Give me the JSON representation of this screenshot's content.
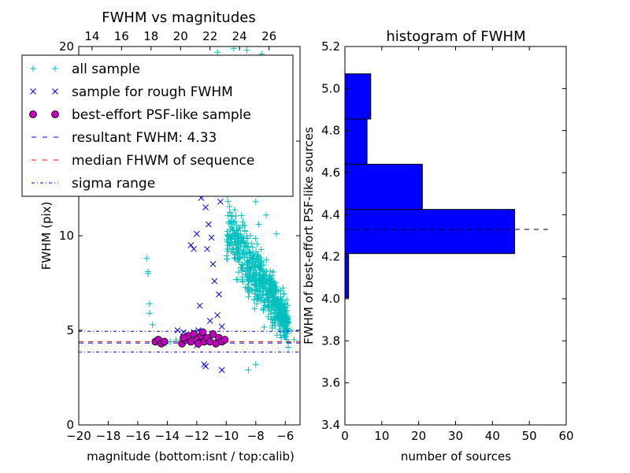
{
  "figure": {
    "background": "#ffffff"
  },
  "chart_data": [
    {
      "type": "scatter",
      "title": "FWHM vs magnitudes",
      "xlabel": "magnitude (bottom:isnt / top:calib)",
      "ylabel": "FWHM (pix)",
      "xlim": [
        -20,
        -5
      ],
      "ylim": [
        0,
        20
      ],
      "xticks": [
        "−20",
        "−18",
        "−16",
        "−14",
        "−12",
        "−10",
        "−8",
        "−6"
      ],
      "xtick_values": [
        -20,
        -18,
        -16,
        -14,
        -12,
        -10,
        -8,
        -6
      ],
      "yticks": [
        "0",
        "5",
        "10",
        "15",
        "20"
      ],
      "ytick_values": [
        0,
        5,
        10,
        15,
        20
      ],
      "top_axis": {
        "ticks": [
          "14",
          "16",
          "18",
          "20",
          "22",
          "24",
          "26"
        ],
        "positions_in_bottom_units": [
          -19.1,
          -17.1,
          -15.1,
          -13.1,
          -11.1,
          -9.1,
          -7.1
        ]
      },
      "grid": false,
      "legend_position": "upper-left",
      "series": [
        {
          "name": "all sample",
          "marker": "plus",
          "color": "#00bfbf",
          "points": [
            [
              -15.4,
              8.8
            ],
            [
              -15.3,
              8.1
            ],
            [
              -15.3,
              8.0
            ],
            [
              -15.2,
              6.4
            ],
            [
              -15.2,
              5.9
            ],
            [
              -15.0,
              5.3
            ],
            [
              -14.8,
              4.5
            ],
            [
              -14.5,
              4.4
            ],
            [
              -14.1,
              4.3
            ],
            [
              -13.8,
              4.4
            ],
            [
              -13.4,
              4.5
            ],
            [
              -13.1,
              4.4
            ],
            [
              -12.5,
              4.6
            ],
            [
              -11.8,
              4.5
            ],
            [
              -11.2,
              4.6
            ],
            [
              -10.5,
              4.5
            ],
            [
              -10.2,
              4.5
            ],
            [
              -10.6,
              19.7
            ],
            [
              -10.5,
              19.3
            ],
            [
              -9.5,
              19.9
            ],
            [
              -8.6,
              19.8
            ],
            [
              -7.6,
              19.6
            ],
            [
              -7.3,
              11.1
            ],
            [
              -6.6,
              10.1
            ],
            [
              -5.6,
              5.0
            ],
            [
              -5.4,
              4.5
            ],
            [
              -8.5,
              2.9
            ],
            [
              -8.0,
              3.2
            ],
            [
              -9.8,
              14.5
            ],
            [
              -9.6,
              16.2
            ],
            [
              -9.4,
              17.4
            ],
            [
              -9.3,
              13.3
            ],
            [
              -9.2,
              15.1
            ],
            [
              -9.0,
              16.8
            ],
            [
              -8.9,
              12.6
            ],
            [
              -8.7,
              14.8
            ],
            [
              -8.5,
              17.9
            ],
            [
              -8.3,
              13.9
            ],
            [
              -8.2,
              15.7
            ],
            [
              -8.0,
              11.8
            ],
            [
              -7.9,
              14.2
            ],
            [
              -7.6,
              12.9
            ],
            [
              -7.8,
              10.6
            ]
          ]
        },
        {
          "name": "sample for rough FWHM",
          "marker": "x",
          "color": "#0000ff",
          "points": [
            [
              -13.3,
              5.0
            ],
            [
              -12.9,
              4.9
            ],
            [
              -12.6,
              4.6
            ],
            [
              -12.2,
              4.9
            ],
            [
              -11.9,
              5.0
            ],
            [
              -11.5,
              4.8
            ],
            [
              -12.4,
              9.5
            ],
            [
              -12.2,
              9.3
            ],
            [
              -12.0,
              10.1
            ],
            [
              -11.7,
              12.0
            ],
            [
              -11.4,
              11.5
            ],
            [
              -11.2,
              10.6
            ],
            [
              -11.3,
              9.3
            ],
            [
              -11.0,
              9.9
            ],
            [
              -11.8,
              6.3
            ],
            [
              -10.8,
              7.6
            ],
            [
              -11.5,
              3.2
            ],
            [
              -11.4,
              3.1
            ],
            [
              -10.3,
              2.9
            ],
            [
              -11.0,
              14.7
            ],
            [
              -10.4,
              11.8
            ],
            [
              -10.9,
              8.5
            ],
            [
              -10.5,
              6.9
            ],
            [
              -10.6,
              5.8
            ],
            [
              -10.3,
              5.2
            ],
            [
              -11.1,
              5.5
            ],
            [
              -12.0,
              4.2
            ],
            [
              -11.0,
              13.2
            ]
          ]
        },
        {
          "name": "best-effort PSF-like sample",
          "marker": "circle",
          "color": "#bf00bf",
          "points": [
            [
              -14.8,
              4.4
            ],
            [
              -14.6,
              4.5
            ],
            [
              -14.4,
              4.3
            ],
            [
              -14.2,
              4.4
            ],
            [
              -13.0,
              4.3
            ],
            [
              -12.8,
              4.5
            ],
            [
              -12.6,
              4.7
            ],
            [
              -12.4,
              4.4
            ],
            [
              -12.2,
              4.8
            ],
            [
              -12.0,
              4.5
            ],
            [
              -11.9,
              4.3
            ],
            [
              -11.7,
              4.7
            ],
            [
              -11.5,
              4.4
            ],
            [
              -11.3,
              4.6
            ],
            [
              -11.1,
              4.4
            ],
            [
              -10.9,
              4.8
            ],
            [
              -10.7,
              4.3
            ],
            [
              -10.5,
              4.6
            ],
            [
              -10.3,
              4.4
            ],
            [
              -10.1,
              4.5
            ],
            [
              -12.9,
              4.6
            ],
            [
              -11.6,
              4.9
            ]
          ]
        }
      ],
      "lines": [
        {
          "name": "resultant FWHM: 4.33",
          "y": 4.33,
          "style": "dashed",
          "color": "#0000ff"
        },
        {
          "name": "median FHWM of sequence",
          "y": 4.4,
          "style": "dashed",
          "color": "#ff0000"
        },
        {
          "name": "sigma range",
          "y": 4.95,
          "style": "dashdot",
          "color": "#0000ff"
        },
        {
          "name": "",
          "y": 3.85,
          "style": "dashdot",
          "color": "#0000ff"
        }
      ],
      "legend": [
        {
          "label": "all sample",
          "marker": "plus",
          "color": "#00bfbf"
        },
        {
          "label": "sample for rough FWHM",
          "marker": "x",
          "color": "#0000ff"
        },
        {
          "label": "best-effort PSF-like sample",
          "marker": "circle",
          "color": "#bf00bf"
        },
        {
          "label": "resultant FWHM: 4.33",
          "marker": "dashed",
          "color": "#0000ff"
        },
        {
          "label": "median FHWM of sequence",
          "marker": "dashed",
          "color": "#ff0000"
        },
        {
          "label": "sigma range",
          "marker": "dashdot",
          "color": "#0000ff"
        }
      ],
      "dense_cluster": {
        "x_range": [
          -10.0,
          -5.8
        ],
        "y_peak": 10.5,
        "color": "#00bfbf",
        "marker": "plus",
        "count": 650
      }
    },
    {
      "type": "bar",
      "orientation": "horizontal",
      "title": "histogram of FWHM",
      "xlabel": "number of sources",
      "ylabel": "FWHM of best-effort PSF-like sources",
      "xlim": [
        0,
        60
      ],
      "ylim": [
        3.4,
        5.2
      ],
      "xticks": [
        "0",
        "10",
        "20",
        "30",
        "40",
        "50",
        "60"
      ],
      "xtick_values": [
        0,
        10,
        20,
        30,
        40,
        50,
        60
      ],
      "yticks": [
        "3.4",
        "3.6",
        "3.8",
        "4.0",
        "4.2",
        "4.4",
        "4.6",
        "4.8",
        "5.0",
        "5.2"
      ],
      "ytick_values": [
        3.4,
        3.6,
        3.8,
        4.0,
        4.2,
        4.4,
        4.6,
        4.8,
        5.0,
        5.2
      ],
      "bar_color": "#0000ff",
      "bins": [
        {
          "lo": 4.005,
          "hi": 4.215,
          "count": 1
        },
        {
          "lo": 4.215,
          "hi": 4.425,
          "count": 46
        },
        {
          "lo": 4.425,
          "hi": 4.64,
          "count": 21
        },
        {
          "lo": 4.64,
          "hi": 4.855,
          "count": 6
        },
        {
          "lo": 4.855,
          "hi": 5.07,
          "count": 7
        }
      ],
      "hline": {
        "y": 4.33,
        "x_range": [
          0,
          55
        ],
        "style": "dashed",
        "color": "#000000"
      }
    }
  ]
}
